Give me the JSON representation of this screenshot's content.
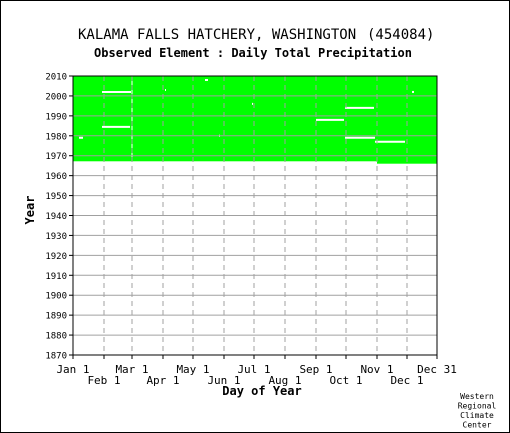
{
  "chart_data": {
    "type": "heatmap",
    "title": "KALAMA FALLS HATCHERY, WASHINGTON",
    "station_id": "(454084)",
    "subtitle": "Observed Element : Daily Total Precipitation",
    "xlabel": "Day of Year",
    "ylabel": "Year",
    "credit": [
      "Western",
      "Regional",
      "Climate",
      "Center"
    ],
    "x_range": [
      1,
      365
    ],
    "ylim": [
      1870,
      2010
    ],
    "yticks": [
      1870,
      1880,
      1890,
      1900,
      1910,
      1920,
      1930,
      1940,
      1950,
      1960,
      1970,
      1980,
      1990,
      2000,
      2010
    ],
    "x_ticks": [
      {
        "label": "Jan 1",
        "day": 1,
        "row": "upper"
      },
      {
        "label": "Feb 1",
        "day": 32,
        "row": "lower"
      },
      {
        "label": "Mar 1",
        "day": 60,
        "row": "upper"
      },
      {
        "label": "Apr 1",
        "day": 91,
        "row": "lower"
      },
      {
        "label": "May 1",
        "day": 121,
        "row": "upper"
      },
      {
        "label": "Jun 1",
        "day": 152,
        "row": "lower"
      },
      {
        "label": "Jul 1",
        "day": 182,
        "row": "upper"
      },
      {
        "label": "Aug 1",
        "day": 213,
        "row": "lower"
      },
      {
        "label": "Sep 1",
        "day": 244,
        "row": "upper"
      },
      {
        "label": "Oct 1",
        "day": 274,
        "row": "lower"
      },
      {
        "label": "Nov 1",
        "day": 305,
        "row": "upper"
      },
      {
        "label": "Dec 1",
        "day": 335,
        "row": "lower"
      },
      {
        "label": "Dec 31",
        "day": 365,
        "row": "upper"
      }
    ],
    "grid": true,
    "colors": {
      "data": "#00ff00",
      "missing": "#ffffff",
      "grid": "#a0a0a0",
      "axis": "#000000"
    },
    "data_blocks": [
      {
        "name": "observed",
        "day_start": 1,
        "day_end": 305,
        "year_start": 1967.2,
        "year_end": 2010
      },
      {
        "name": "observed",
        "day_start": 305,
        "day_end": 365,
        "year_start": 1966,
        "year_end": 2010
      }
    ],
    "missing_segments": [
      {
        "year": 2002,
        "day_start": 30,
        "day_end": 59
      },
      {
        "year": 1984.5,
        "day_start": 30,
        "day_end": 58
      },
      {
        "year": 1979,
        "day_start": 7,
        "day_end": 11
      },
      {
        "year": 1988,
        "day_start": 244,
        "day_end": 272
      },
      {
        "year": 1994,
        "day_start": 273,
        "day_end": 302
      },
      {
        "year": 1979,
        "day_start": 273,
        "day_end": 303
      },
      {
        "year": 1977,
        "day_start": 303,
        "day_end": 333
      },
      {
        "year": 2008,
        "day_start": 133,
        "day_end": 136
      },
      {
        "year": 2003,
        "day_start": 93,
        "day_end": 94
      },
      {
        "year": 1996,
        "day_start": 180,
        "day_end": 181
      },
      {
        "year": 1980,
        "day_start": 147,
        "day_end": 148
      },
      {
        "year": 2002,
        "day_start": 340,
        "day_end": 342
      }
    ],
    "missing_day_columns": [
      {
        "day": 60,
        "year_start": 1967.5,
        "year_end": 2010
      }
    ]
  }
}
